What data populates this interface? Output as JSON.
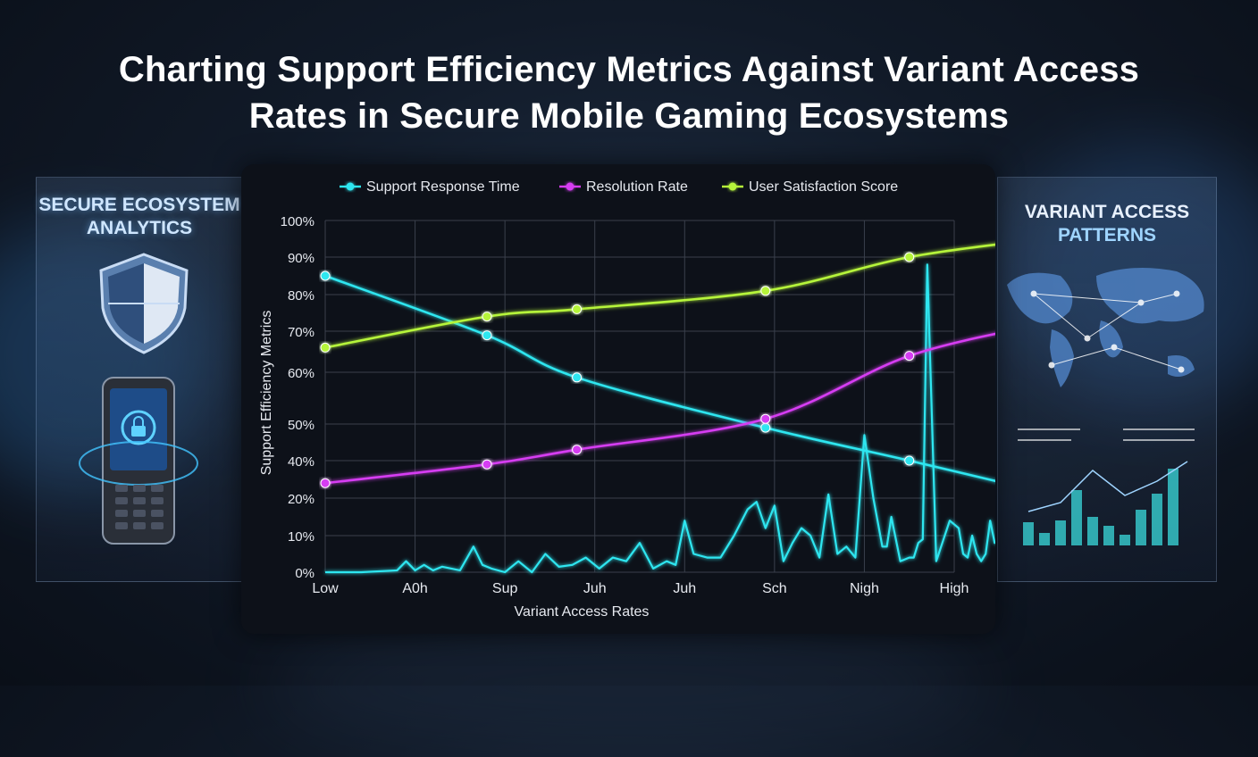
{
  "title": "Charting Support Efficiency Metrics Against Variant Access Rates in Secure Mobile Gaming Ecosystems",
  "left_panel": {
    "title_line1": "SECURE ECOSYSTEM",
    "title_line2": "ANALYTICS"
  },
  "right_panel": {
    "title_line1": "VARIANT ACCESS",
    "title_line2": "PATTERNS"
  },
  "colors": {
    "cyan": "#2ee6f0",
    "magenta": "#d63cf2",
    "lime": "#b6f53a",
    "grid": "#3a404c"
  },
  "icons": [
    "shield-icon",
    "phone-lock-icon",
    "world-map-icon",
    "bar-chart-icon"
  ],
  "chart_data": {
    "type": "line",
    "title": "",
    "xlabel": "Variant Access Rates",
    "ylabel": "Support Efficiency Metrics",
    "categories": [
      "Low",
      "A0h",
      "Sup",
      "Juh",
      "Juh",
      "Sch",
      "Nigh",
      "High"
    ],
    "y_ticks": [
      "0%",
      "10%",
      "20%",
      "40%",
      "50%",
      "60%",
      "70%",
      "80%",
      "90%",
      "100%"
    ],
    "ylim": [
      0,
      100
    ],
    "grid": true,
    "legend_position": "top",
    "series": [
      {
        "name": "Support Response Time",
        "color": "#2ee6f0",
        "x": [
          0,
          1.8,
          2.8,
          4.9,
          6.5,
          8
        ],
        "values": [
          85,
          69,
          59,
          49,
          40,
          23
        ]
      },
      {
        "name": "Resolution Rate",
        "color": "#d63cf2",
        "x": [
          0,
          1.8,
          2.8,
          4.9,
          6.5,
          8
        ],
        "values": [
          28,
          38,
          43,
          51,
          64,
          72
        ]
      },
      {
        "name": "User Satisfaction Score",
        "color": "#b6f53a",
        "x": [
          0,
          1.8,
          2.8,
          4.9,
          6.5,
          8
        ],
        "values": [
          66,
          74,
          76,
          81,
          90,
          95
        ]
      }
    ],
    "access_signal": {
      "color": "#2ee6f0",
      "x": [
        0,
        0.4,
        0.8,
        0.9,
        1.0,
        1.1,
        1.2,
        1.3,
        1.5,
        1.65,
        1.75,
        1.85,
        2.0,
        2.15,
        2.3,
        2.45,
        2.6,
        2.75,
        2.9,
        3.05,
        3.2,
        3.35,
        3.5,
        3.65,
        3.8,
        3.9,
        4.0,
        4.1,
        4.25,
        4.4,
        4.55,
        4.7,
        4.8,
        4.9,
        5.0,
        5.1,
        5.2,
        5.3,
        5.4,
        5.5,
        5.6,
        5.7,
        5.8,
        5.9,
        6.0,
        6.1,
        6.2,
        6.25,
        6.3,
        6.4,
        6.5,
        6.55,
        6.6,
        6.65,
        6.7,
        6.8,
        6.95,
        7.05,
        7.1,
        7.15,
        7.2,
        7.25,
        7.3,
        7.35,
        7.4,
        7.45,
        7.5,
        7.55,
        7.6,
        7.65,
        7.7,
        7.75,
        7.8,
        7.85,
        7.9,
        7.95,
        8.0
      ],
      "values": [
        0,
        0,
        0.5,
        3,
        0.5,
        2,
        0.5,
        1.5,
        0.5,
        7,
        2,
        1,
        0,
        3,
        0,
        5,
        1.5,
        2,
        4,
        1,
        4,
        3,
        8,
        1,
        3,
        2,
        14,
        5,
        4,
        4,
        10,
        17,
        19,
        12,
        18,
        3,
        8,
        12,
        10,
        4,
        22,
        5,
        7,
        4,
        47,
        20,
        7,
        7,
        15,
        3,
        4,
        4,
        8,
        9,
        88,
        3,
        14,
        12,
        5,
        4,
        10,
        5,
        3,
        5,
        14,
        8,
        8,
        3,
        6,
        11,
        8,
        14,
        4,
        9,
        13,
        9,
        8
      ]
    }
  }
}
